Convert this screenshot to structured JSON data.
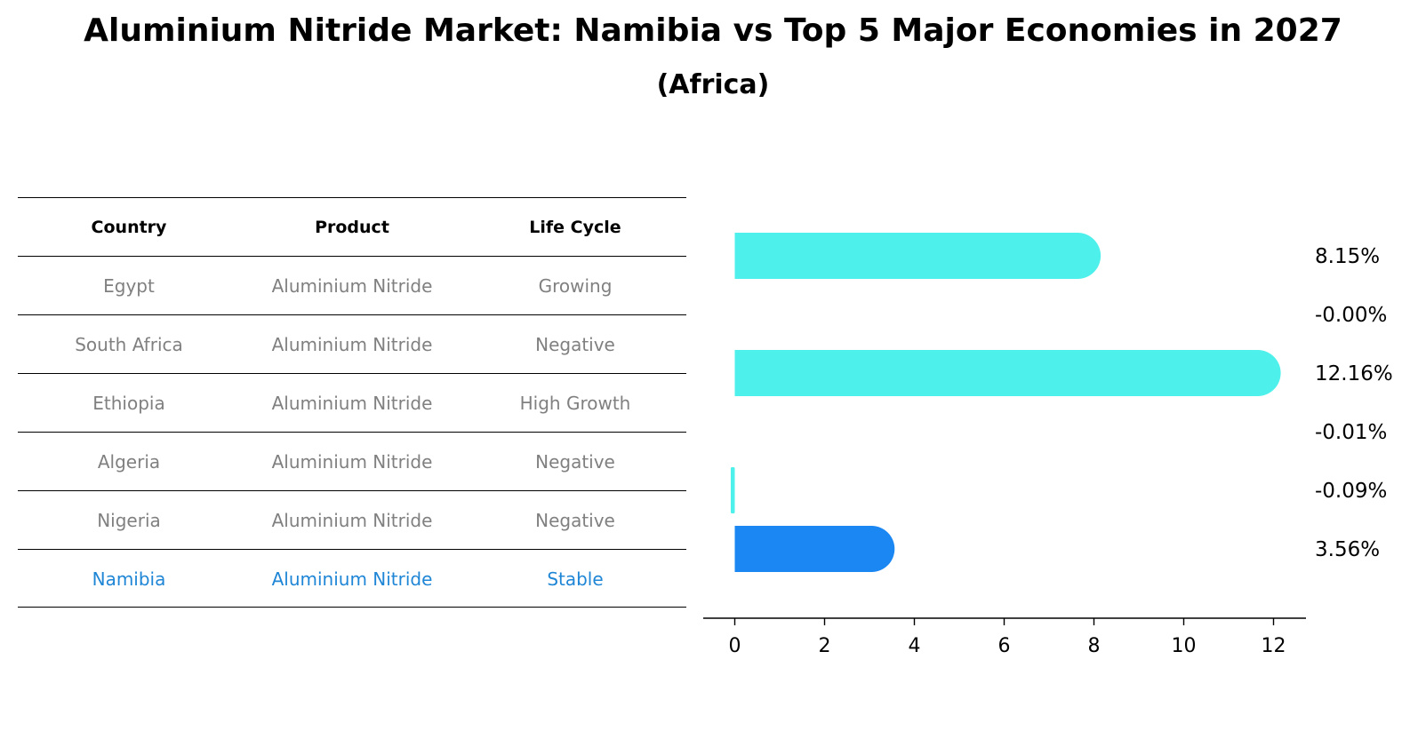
{
  "title": "Aluminium Nitride Market: Namibia vs Top 5 Major Economies in 2027",
  "subtitle": "(Africa)",
  "table": {
    "headers": [
      "Country",
      "Product",
      "Life Cycle"
    ],
    "rows": [
      [
        "Egypt",
        "Aluminium Nitride",
        "Growing"
      ],
      [
        "South Africa",
        "Aluminium Nitride",
        "Negative"
      ],
      [
        "Ethiopia",
        "Aluminium Nitride",
        "High Growth"
      ],
      [
        "Algeria",
        "Aluminium Nitride",
        "Negative"
      ],
      [
        "Nigeria",
        "Aluminium Nitride",
        "Negative"
      ],
      [
        "Namibia",
        "Aluminium Nitride",
        "Stable"
      ]
    ]
  },
  "colors": {
    "bar": "#4df0ea",
    "highlight": "#1a87f3",
    "highlight_text": "#1f86d6",
    "muted_text": "#808080"
  },
  "chart_data": {
    "type": "bar",
    "orientation": "horizontal",
    "categories": [
      "Egypt",
      "South Africa",
      "Ethiopia",
      "Algeria",
      "Nigeria",
      "Namibia"
    ],
    "values": [
      8.15,
      -0.0,
      12.16,
      -0.01,
      -0.09,
      3.56
    ],
    "value_labels": [
      "8.15%",
      "-0.00%",
      "12.16%",
      "-0.01%",
      "-0.09%",
      "3.56%"
    ],
    "highlight": "Namibia",
    "xlim": [
      -0.7,
      12.8
    ],
    "xticks": [
      0,
      2,
      4,
      6,
      8,
      10,
      12
    ],
    "xlabel": "",
    "ylabel": "",
    "grid": false
  }
}
